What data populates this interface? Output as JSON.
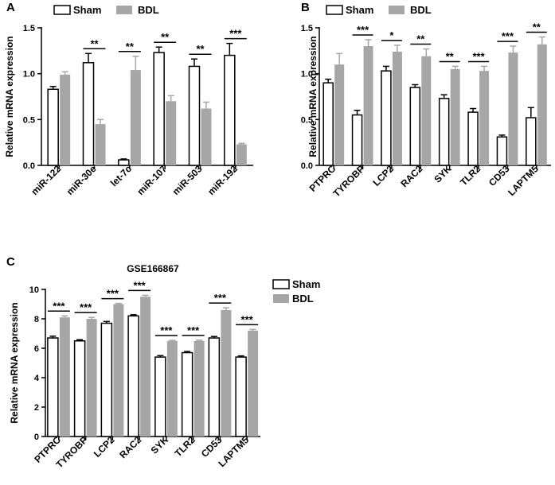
{
  "colors": {
    "sham_fill": "#ffffff",
    "bdl_fill": "#a6a6a6",
    "axis": "#000000",
    "bdl_err": "#a6a6a6"
  },
  "chart_data": [
    {
      "panel": "A",
      "type": "bar",
      "title": "",
      "ylabel": "Relative mRNA expression",
      "ylim": [
        0,
        1.5
      ],
      "yticks": [
        "0.0",
        "0.5",
        "1.0",
        "1.5"
      ],
      "categories": [
        "miR-122",
        "miR-30e",
        "let-7c",
        "miR-107",
        "miR-503",
        "miR-192"
      ],
      "series": [
        {
          "name": "Sham",
          "values": [
            0.83,
            1.12,
            0.06,
            1.23,
            1.08,
            1.2
          ],
          "errors": [
            0.03,
            0.1,
            0.01,
            0.06,
            0.08,
            0.13
          ]
        },
        {
          "name": "BDL",
          "values": [
            0.99,
            0.45,
            1.04,
            0.7,
            0.62,
            0.23
          ],
          "errors": [
            0.03,
            0.05,
            0.15,
            0.06,
            0.07,
            0.01
          ]
        }
      ],
      "significance": [
        "",
        "**",
        "**",
        "**",
        "**",
        "***"
      ],
      "legend": "top"
    },
    {
      "panel": "B",
      "type": "bar",
      "title": "",
      "ylabel": "Relative mRNA expression",
      "ylim": [
        0,
        1.5
      ],
      "yticks": [
        "0.0",
        "0.5",
        "1.0",
        "1.5"
      ],
      "categories": [
        "PTPRC",
        "TYROBP",
        "LCP2",
        "RAC2",
        "SYK",
        "TLR2",
        "CD53",
        "LAPTM5"
      ],
      "series": [
        {
          "name": "Sham",
          "values": [
            0.9,
            0.55,
            1.03,
            0.85,
            0.73,
            0.58,
            0.31,
            0.52
          ],
          "errors": [
            0.04,
            0.05,
            0.05,
            0.03,
            0.04,
            0.04,
            0.02,
            0.11
          ]
        },
        {
          "name": "BDL",
          "values": [
            1.1,
            1.3,
            1.24,
            1.19,
            1.05,
            1.03,
            1.23,
            1.32
          ],
          "errors": [
            0.12,
            0.07,
            0.07,
            0.08,
            0.03,
            0.05,
            0.07,
            0.08
          ]
        }
      ],
      "significance": [
        "",
        "***",
        "*",
        "**",
        "**",
        "***",
        "***",
        "**"
      ],
      "legend": "top"
    },
    {
      "panel": "C",
      "type": "bar",
      "title": "GSE166867",
      "ylabel": "Relative mRNA expression",
      "ylim": [
        0,
        10
      ],
      "yticks": [
        "0",
        "2",
        "4",
        "6",
        "8",
        "10"
      ],
      "categories": [
        "PTPRC",
        "TYROBP",
        "LCP2",
        "RAC2",
        "SYK",
        "TLR2",
        "CD53",
        "LAPTM5"
      ],
      "series": [
        {
          "name": "Sham",
          "values": [
            6.7,
            6.5,
            7.7,
            8.2,
            5.4,
            5.7,
            6.7,
            5.4
          ],
          "errors": [
            0.12,
            0.08,
            0.12,
            0.08,
            0.1,
            0.08,
            0.1,
            0.08
          ]
        },
        {
          "name": "BDL",
          "values": [
            8.1,
            8.0,
            9.0,
            9.5,
            6.5,
            6.5,
            8.6,
            7.2
          ],
          "errors": [
            0.1,
            0.1,
            0.05,
            0.1,
            0.04,
            0.05,
            0.15,
            0.08
          ]
        }
      ],
      "significance": [
        "***",
        "***",
        "***",
        "***",
        "***",
        "***",
        "***",
        "***"
      ],
      "legend": "right"
    }
  ]
}
